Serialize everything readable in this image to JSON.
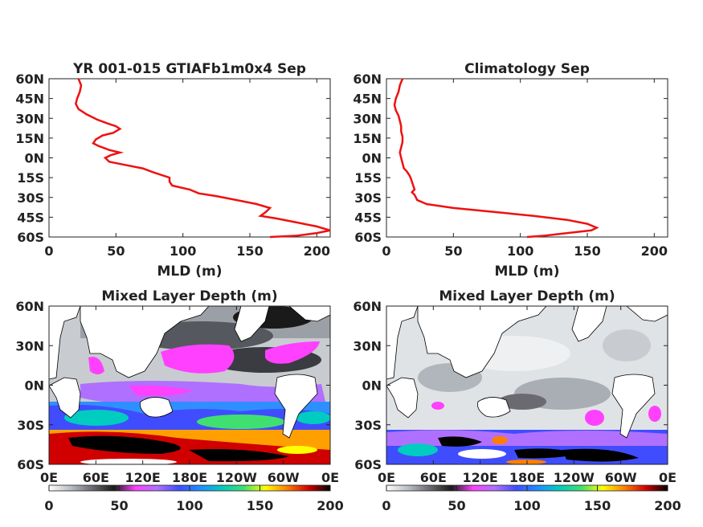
{
  "chart_data": [
    {
      "type": "line",
      "title": "YR 001-015 GTIAFb1m0x4 Sep",
      "xlabel": "MLD (m)",
      "ylabel": "",
      "xlim": [
        0,
        210
      ],
      "ylim": [
        -60,
        60
      ],
      "xticks": [
        "0",
        "50",
        "100",
        "150",
        "200"
      ],
      "xtick_values": [
        0,
        50,
        100,
        150,
        200
      ],
      "yticks": [
        "60N",
        "45N",
        "30N",
        "15N",
        "0N",
        "15S",
        "30S",
        "45S",
        "60S"
      ],
      "ytick_values": [
        60,
        45,
        30,
        15,
        0,
        -15,
        -30,
        -45,
        -60
      ],
      "grid": false,
      "line_color": "#ee1111",
      "series": [
        {
          "x": [
            22,
            24,
            23,
            21,
            20,
            22,
            28,
            36,
            44,
            50,
            53,
            48,
            40,
            35,
            33,
            37,
            45,
            53,
            46,
            42,
            45,
            55,
            70,
            78,
            90,
            90,
            92,
            105,
            112,
            125,
            140,
            155,
            165,
            162,
            158,
            170,
            185,
            200,
            210,
            200,
            185,
            165
          ],
          "y": [
            60,
            55,
            50,
            45,
            41,
            37,
            33,
            29,
            26,
            24,
            22,
            19,
            17,
            14,
            11,
            9,
            6,
            4,
            2,
            0,
            -3,
            -5,
            -8,
            -11,
            -15,
            -18,
            -21,
            -24,
            -27,
            -29,
            -32,
            -35,
            -38,
            -41,
            -44,
            -46,
            -49,
            -52,
            -55,
            -57,
            -59,
            -60
          ]
        }
      ]
    },
    {
      "type": "line",
      "title": "Climatology Sep",
      "xlabel": "MLD (m)",
      "ylabel": "",
      "xlim": [
        0,
        210
      ],
      "ylim": [
        -60,
        60
      ],
      "xticks": [
        "0",
        "50",
        "100",
        "150",
        "200"
      ],
      "xtick_values": [
        0,
        50,
        100,
        150,
        200
      ],
      "yticks": [
        "60N",
        "45N",
        "30N",
        "15N",
        "0N",
        "15S",
        "30S",
        "45S",
        "60S"
      ],
      "ytick_values": [
        60,
        45,
        30,
        15,
        0,
        -15,
        -30,
        -45,
        -60
      ],
      "grid": false,
      "line_color": "#ee1111",
      "series": [
        {
          "x": [
            12,
            10,
            9,
            7,
            6,
            7,
            9,
            10,
            11,
            11,
            12,
            12,
            11,
            10,
            11,
            12,
            13,
            15,
            17,
            18,
            19,
            20,
            21,
            19,
            21,
            22,
            23,
            30,
            50,
            80,
            110,
            135,
            150,
            157,
            153,
            135,
            118,
            105
          ],
          "y": [
            60,
            55,
            50,
            45,
            40,
            36,
            32,
            28,
            24,
            20,
            16,
            12,
            8,
            4,
            0,
            -4,
            -8,
            -10,
            -13,
            -15,
            -18,
            -21,
            -24,
            -26,
            -28,
            -30,
            -32,
            -35,
            -38,
            -41,
            -44,
            -47,
            -50,
            -53,
            -55,
            -57,
            -59,
            -60
          ]
        }
      ]
    },
    {
      "type": "heatmap",
      "title": "Mixed Layer Depth (m)",
      "xticks": [
        "0E",
        "60E",
        "120E",
        "180E",
        "120W",
        "60W",
        "0E"
      ],
      "yticks": [
        "60N",
        "30N",
        "0N",
        "30S",
        "60S"
      ],
      "colorbar": {
        "min": 0,
        "max": 200,
        "ticks": [
          "0",
          "50",
          "100",
          "150",
          "200"
        ],
        "colors": [
          "#ffffff",
          "#b9bfc2",
          "#6a6a70",
          "#1a1a1a",
          "#ff40ff",
          "#b070ff",
          "#3f4dff",
          "#1e8fff",
          "#00ccc0",
          "#40e070",
          "#ffff00",
          "#ff8000",
          "#d00000",
          "#000000"
        ]
      }
    },
    {
      "type": "heatmap",
      "title": "Mixed Layer Depth (m)",
      "xticks": [
        "0E",
        "60E",
        "120E",
        "180E",
        "120W",
        "60W",
        "0E"
      ],
      "yticks": [
        "60N",
        "30N",
        "0N",
        "30S",
        "60S"
      ],
      "colorbar": {
        "min": 0,
        "max": 200,
        "ticks": [
          "0",
          "50",
          "100",
          "150",
          "200"
        ],
        "colors": [
          "#ffffff",
          "#b9bfc2",
          "#6a6a70",
          "#1a1a1a",
          "#ff40ff",
          "#b070ff",
          "#3f4dff",
          "#1e8fff",
          "#00ccc0",
          "#40e070",
          "#ffff00",
          "#ff8000",
          "#d00000",
          "#000000"
        ]
      }
    }
  ]
}
